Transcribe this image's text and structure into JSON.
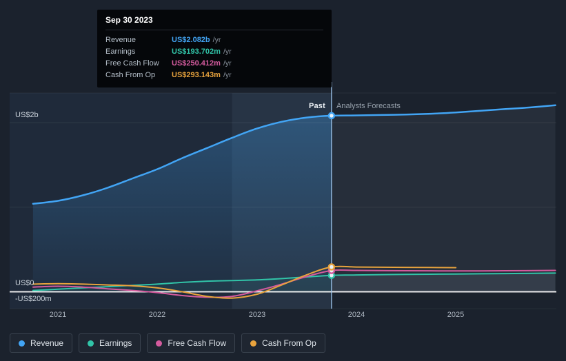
{
  "tooltip": {
    "date": "Sep 30 2023",
    "rows": [
      {
        "label": "Revenue",
        "value": "US$2.082b",
        "suffix": "/yr",
        "color": "#42a5f5"
      },
      {
        "label": "Earnings",
        "value": "US$193.702m",
        "suffix": "/yr",
        "color": "#31c4a8"
      },
      {
        "label": "Free Cash Flow",
        "value": "US$250.412m",
        "suffix": "/yr",
        "color": "#d45b9e"
      },
      {
        "label": "Cash From Op",
        "value": "US$293.143m",
        "suffix": "/yr",
        "color": "#e8a33d"
      }
    ]
  },
  "zones": {
    "past": "Past",
    "forecast": "Analysts Forecasts"
  },
  "axis": {
    "y_labels": {
      "top": "US$2b",
      "zero": "US$0",
      "negative": "-US$200m"
    },
    "x_ticks": [
      "2021",
      "2022",
      "2023",
      "2024",
      "2025"
    ]
  },
  "legend": [
    {
      "label": "Revenue",
      "color": "#42a5f5"
    },
    {
      "label": "Earnings",
      "color": "#31c4a8"
    },
    {
      "label": "Free Cash Flow",
      "color": "#d45b9e"
    },
    {
      "label": "Cash From Op",
      "color": "#e8a33d"
    }
  ],
  "chart_data": {
    "type": "line",
    "units": "US$ millions per year",
    "x_domain": [
      2020.515,
      2026.01
    ],
    "y_domain_m": [
      -200,
      2350
    ],
    "divider_x": 2023.75,
    "divider_label": "Sep 30 2023",
    "x_ticks": [
      2021,
      2022,
      2023,
      2024,
      2025
    ],
    "gridlines_m": [
      2000,
      1000,
      0
    ],
    "hover_band": [
      2022.75,
      2023.75
    ],
    "legend_position": "bottom-left",
    "series": [
      {
        "name": "Revenue",
        "color": "#42a5f5",
        "width": 2.5,
        "fill_past": "revenue-gradient",
        "fill_forecast": "rgba(173,192,214,0.08)",
        "points": [
          [
            2020.75,
            1040
          ],
          [
            2021,
            1075
          ],
          [
            2021.25,
            1140
          ],
          [
            2021.5,
            1230
          ],
          [
            2021.75,
            1340
          ],
          [
            2022,
            1450
          ],
          [
            2022.25,
            1580
          ],
          [
            2022.5,
            1700
          ],
          [
            2022.75,
            1820
          ],
          [
            2023,
            1930
          ],
          [
            2023.25,
            2010
          ],
          [
            2023.5,
            2060
          ],
          [
            2023.75,
            2082
          ],
          [
            2024,
            2085
          ],
          [
            2024.25,
            2090
          ],
          [
            2024.5,
            2095
          ],
          [
            2024.75,
            2105
          ],
          [
            2025,
            2120
          ],
          [
            2025.25,
            2140
          ],
          [
            2025.5,
            2160
          ],
          [
            2025.75,
            2180
          ],
          [
            2026,
            2205
          ]
        ]
      },
      {
        "name": "Earnings",
        "color": "#31c4a8",
        "width": 2,
        "fill_past": "rgba(49,196,168,0.07)",
        "fill_forecast": "rgba(173,192,214,0.10)",
        "points": [
          [
            2020.75,
            15
          ],
          [
            2021,
            30
          ],
          [
            2021.25,
            45
          ],
          [
            2021.5,
            60
          ],
          [
            2021.75,
            75
          ],
          [
            2022,
            90
          ],
          [
            2022.25,
            110
          ],
          [
            2022.5,
            125
          ],
          [
            2022.75,
            132
          ],
          [
            2023,
            140
          ],
          [
            2023.25,
            155
          ],
          [
            2023.5,
            175
          ],
          [
            2023.75,
            193.702
          ],
          [
            2024,
            198
          ],
          [
            2024.5,
            205
          ],
          [
            2025,
            210
          ],
          [
            2025.5,
            215
          ],
          [
            2026,
            220
          ]
        ]
      },
      {
        "name": "Free Cash Flow",
        "color": "#d45b9e",
        "width": 2,
        "points": [
          [
            2020.75,
            55
          ],
          [
            2021,
            65
          ],
          [
            2021.25,
            55
          ],
          [
            2021.5,
            35
          ],
          [
            2021.75,
            15
          ],
          [
            2022,
            -10
          ],
          [
            2022.25,
            -45
          ],
          [
            2022.5,
            -65
          ],
          [
            2022.75,
            -55
          ],
          [
            2023,
            10
          ],
          [
            2023.25,
            90
          ],
          [
            2023.5,
            180
          ],
          [
            2023.75,
            250.412
          ],
          [
            2024,
            252
          ],
          [
            2024.5,
            248
          ],
          [
            2025,
            246
          ],
          [
            2025.5,
            248
          ],
          [
            2026,
            252
          ]
        ]
      },
      {
        "name": "Cash From Op",
        "color": "#e8a33d",
        "width": 2,
        "points": [
          [
            2020.75,
            90
          ],
          [
            2021,
            95
          ],
          [
            2021.25,
            90
          ],
          [
            2021.5,
            80
          ],
          [
            2021.75,
            70
          ],
          [
            2022,
            45
          ],
          [
            2022.25,
            0
          ],
          [
            2022.5,
            -55
          ],
          [
            2022.75,
            -75
          ],
          [
            2023,
            -30
          ],
          [
            2023.25,
            80
          ],
          [
            2023.5,
            200
          ],
          [
            2023.75,
            293.143
          ],
          [
            2024,
            292
          ],
          [
            2024.25,
            290
          ],
          [
            2024.5,
            288
          ],
          [
            2024.75,
            286
          ],
          [
            2025,
            285
          ]
        ]
      }
    ]
  }
}
